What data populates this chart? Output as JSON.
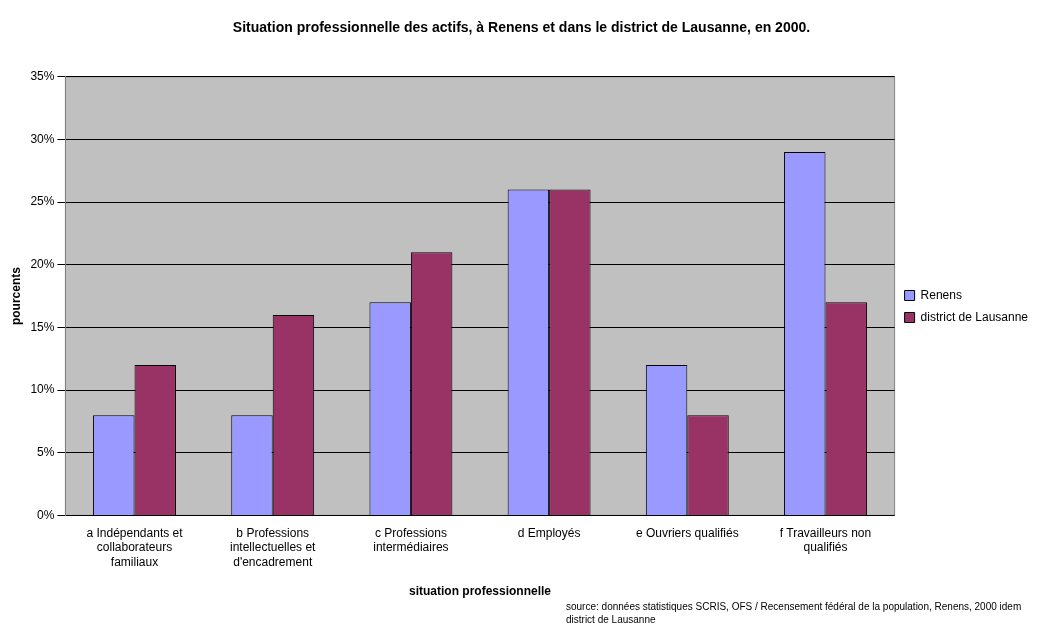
{
  "chart_data": {
    "type": "bar",
    "title": "Situation professionnelle des actifs, à Renens et dans le district de Lausanne, en 2000.",
    "xlabel": "situation professionnelle",
    "ylabel": "pourcents",
    "categories": [
      "a Indépendants et collaborateurs familiaux",
      "b Professions intellectuelles et d'encadrement",
      "c Professions intermédiaires",
      "d Employés",
      "e Ouvriers qualifiés",
      "f Travailleurs non qualifiés"
    ],
    "series": [
      {
        "name": "Renens",
        "color": "#9999ff",
        "values": [
          8,
          8,
          17,
          26,
          12,
          29
        ]
      },
      {
        "name": "district de Lausanne",
        "color": "#993366",
        "values": [
          12,
          16,
          21,
          26,
          8,
          17
        ]
      }
    ],
    "ylim": [
      0,
      35
    ],
    "yticks": [
      {
        "value": 0,
        "label": "0%"
      },
      {
        "value": 5,
        "label": "5%"
      },
      {
        "value": 10,
        "label": "10%"
      },
      {
        "value": 15,
        "label": "15%"
      },
      {
        "value": 20,
        "label": "20%"
      },
      {
        "value": 25,
        "label": "25%"
      },
      {
        "value": 30,
        "label": "30%"
      },
      {
        "value": 35,
        "label": "35%"
      }
    ],
    "grid": "y",
    "legend": "right",
    "annotations": [
      "source: données statistiques SCRIS, OFS / Recensement fédéral de la population, Renens, 2000 idem district de Lausanne"
    ]
  }
}
